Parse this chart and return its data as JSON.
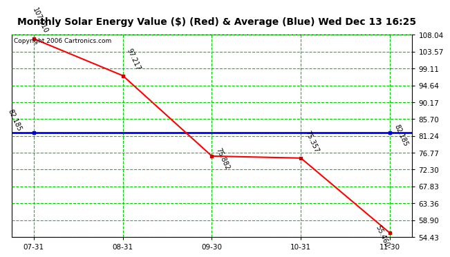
{
  "title": "Monthly Solar Energy Value ($) (Red) & Average (Blue) Wed Dec 13 16:25",
  "copyright": "Copyright 2006 Cartronics.com",
  "x_labels": [
    "07-31",
    "08-31",
    "09-30",
    "10-31",
    "11-30"
  ],
  "x_values": [
    0,
    1,
    2,
    3,
    4
  ],
  "red_values": [
    107.01,
    97.217,
    75.882,
    75.357,
    55.46
  ],
  "red_labels": [
    "107.010",
    "97.217",
    "75.882",
    "75.357",
    "55.460"
  ],
  "average_value": 82.185,
  "average_label": "82.185",
  "ylim_min": 54.43,
  "ylim_max": 108.04,
  "yticks": [
    108.04,
    103.57,
    99.11,
    94.64,
    90.17,
    85.7,
    81.24,
    76.77,
    72.3,
    67.83,
    63.36,
    58.9,
    54.43
  ],
  "bg_color": "#ffffff",
  "plot_bg_color": "#ffffff",
  "grid_color": "#00cc00",
  "red_line_color": "#ff0000",
  "blue_line_color": "#0000ff",
  "marker_color_red": "#cc0000",
  "marker_color_blue": "#0000cc",
  "title_fontsize": 10,
  "annotation_fontsize": 7,
  "tick_fontsize": 7.5,
  "copyright_fontsize": 6.5
}
